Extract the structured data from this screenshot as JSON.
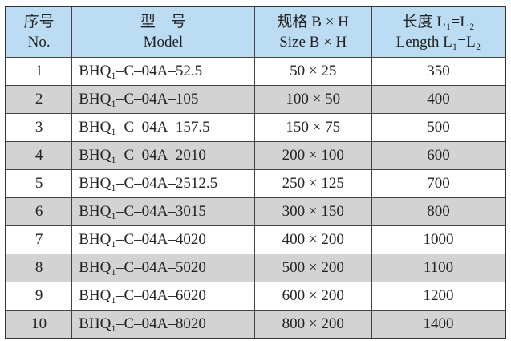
{
  "header": {
    "no_cn": "序号",
    "no_en": "No.",
    "model_cn": "型　号",
    "model_en": "Model",
    "size_cn": "规格 B × H",
    "size_en": "Size B × H",
    "length_cn": "长度 L₁=L₂",
    "length_en": "Length L₁=L₂"
  },
  "colors": {
    "header_bg": "#bcdcf3",
    "alt_row_bg": "#d3d3d3"
  },
  "rows": [
    {
      "no": "1",
      "model": "BHQ₁–C–04A–52.5",
      "size": "50 × 25",
      "length": "350"
    },
    {
      "no": "2",
      "model": "BHQ₁–C–04A–105",
      "size": "100 × 50",
      "length": "400"
    },
    {
      "no": "3",
      "model": "BHQ₁–C–04A–157.5",
      "size": "150 × 75",
      "length": "500"
    },
    {
      "no": "4",
      "model": "BHQ₁–C–04A–2010",
      "size": "200 × 100",
      "length": "600"
    },
    {
      "no": "5",
      "model": "BHQ₁–C–04A–2512.5",
      "size": "250 × 125",
      "length": "700"
    },
    {
      "no": "6",
      "model": "BHQ₁–C–04A–3015",
      "size": "300 × 150",
      "length": "800"
    },
    {
      "no": "7",
      "model": "BHQ₁–C–04A–4020",
      "size": "400 × 200",
      "length": "1000"
    },
    {
      "no": "8",
      "model": "BHQ₁–C–04A–5020",
      "size": "500 × 200",
      "length": "1100"
    },
    {
      "no": "9",
      "model": "BHQ₁–C–04A–6020",
      "size": "600 × 200",
      "length": "1200"
    },
    {
      "no": "10",
      "model": "BHQ₁–C–04A–8020",
      "size": "800 × 200",
      "length": "1400"
    }
  ]
}
